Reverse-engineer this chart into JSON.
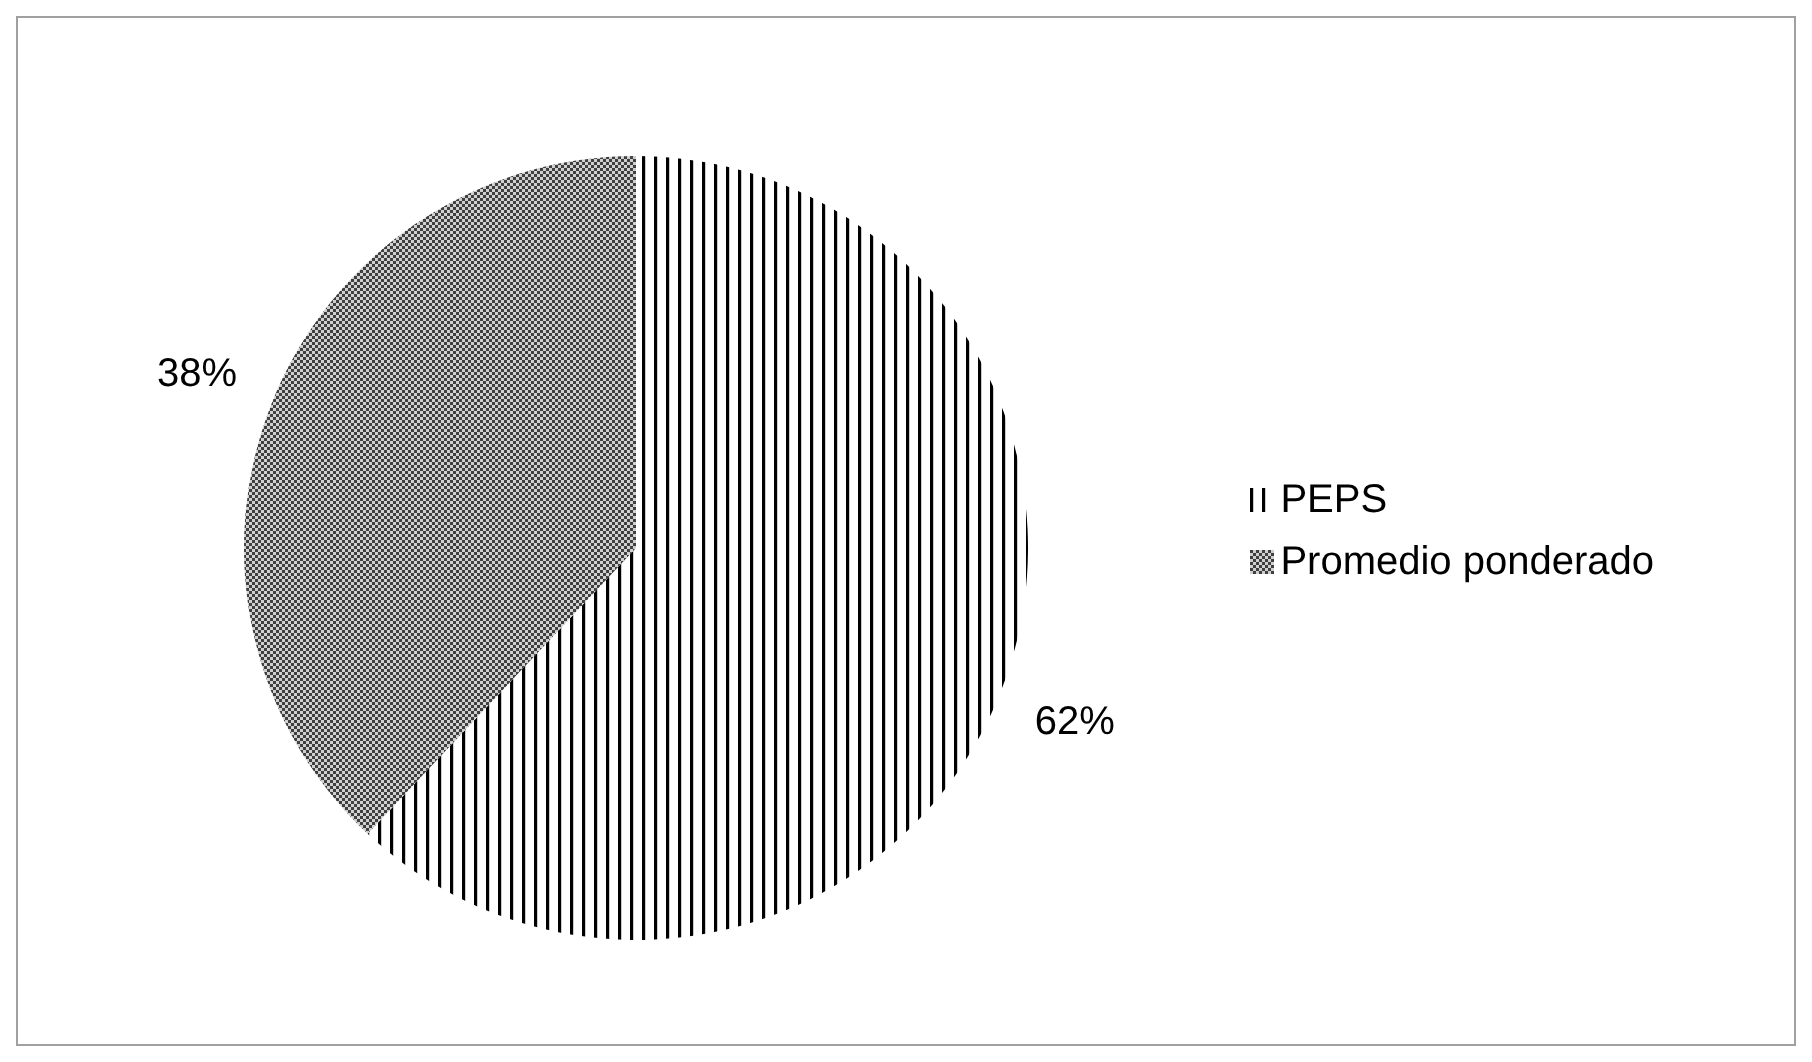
{
  "chart_data": {
    "type": "pie",
    "categories": [
      "PEPS",
      "Promedio ponderado"
    ],
    "values": [
      62,
      38
    ],
    "value_labels": [
      "62%",
      "38%"
    ],
    "colors": [
      "#000000",
      "#404040"
    ],
    "legend": "right"
  }
}
